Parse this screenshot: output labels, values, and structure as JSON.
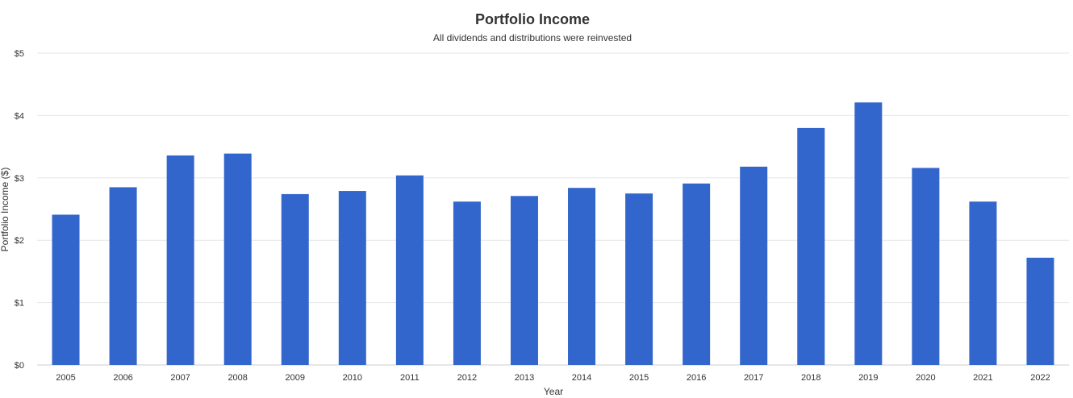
{
  "chart_data": {
    "type": "bar",
    "title": "Portfolio Income",
    "subtitle": "All dividends and distributions were reinvested",
    "xlabel": "Year",
    "ylabel": "Portfolio Income ($)",
    "categories": [
      "2005",
      "2006",
      "2007",
      "2008",
      "2009",
      "2010",
      "2011",
      "2012",
      "2013",
      "2014",
      "2015",
      "2016",
      "2017",
      "2018",
      "2019",
      "2020",
      "2021",
      "2022"
    ],
    "values": [
      2.41,
      2.85,
      3.36,
      3.39,
      2.74,
      2.79,
      3.04,
      2.62,
      2.71,
      2.84,
      2.75,
      2.91,
      3.18,
      3.8,
      4.21,
      3.16,
      2.62,
      1.72
    ],
    "ylim": [
      0,
      5
    ],
    "yticks": [
      0,
      1,
      2,
      3,
      4,
      5
    ],
    "ytick_labels": [
      "$0",
      "$1",
      "$2",
      "$3",
      "$4",
      "$5"
    ],
    "grid": true,
    "legend": "none",
    "colors": {
      "bar": "#3366cc",
      "grid": "#e6e6e6",
      "axis": "#cccccc",
      "text": "#333333"
    }
  }
}
